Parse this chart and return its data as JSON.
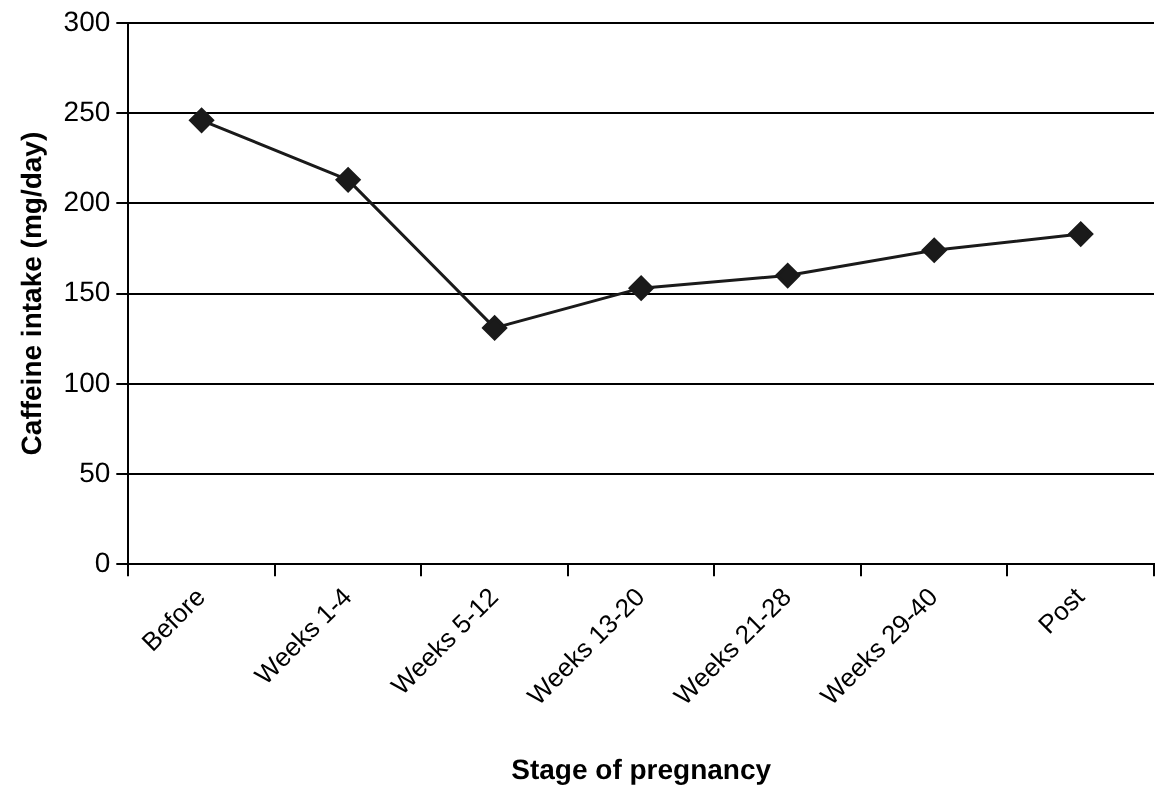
{
  "chart_data": {
    "type": "line",
    "xlabel": "Stage of pregnancy",
    "ylabel": "Caffeine intake (mg/day)",
    "categories": [
      "Before",
      "Weeks 1-4",
      "Weeks 5-12",
      "Weeks 13-20",
      "Weeks 21-28",
      "Weeks 29-40",
      "Post"
    ],
    "series": [
      {
        "color": "#1a1a1a",
        "values": [
          246,
          213,
          131,
          153,
          160,
          174,
          183
        ]
      }
    ],
    "ylim": [
      0,
      300
    ],
    "yticks": [
      0,
      50,
      100,
      150,
      200,
      250,
      300
    ],
    "grid": "y",
    "marker": "diamond",
    "line_style": "solid"
  }
}
